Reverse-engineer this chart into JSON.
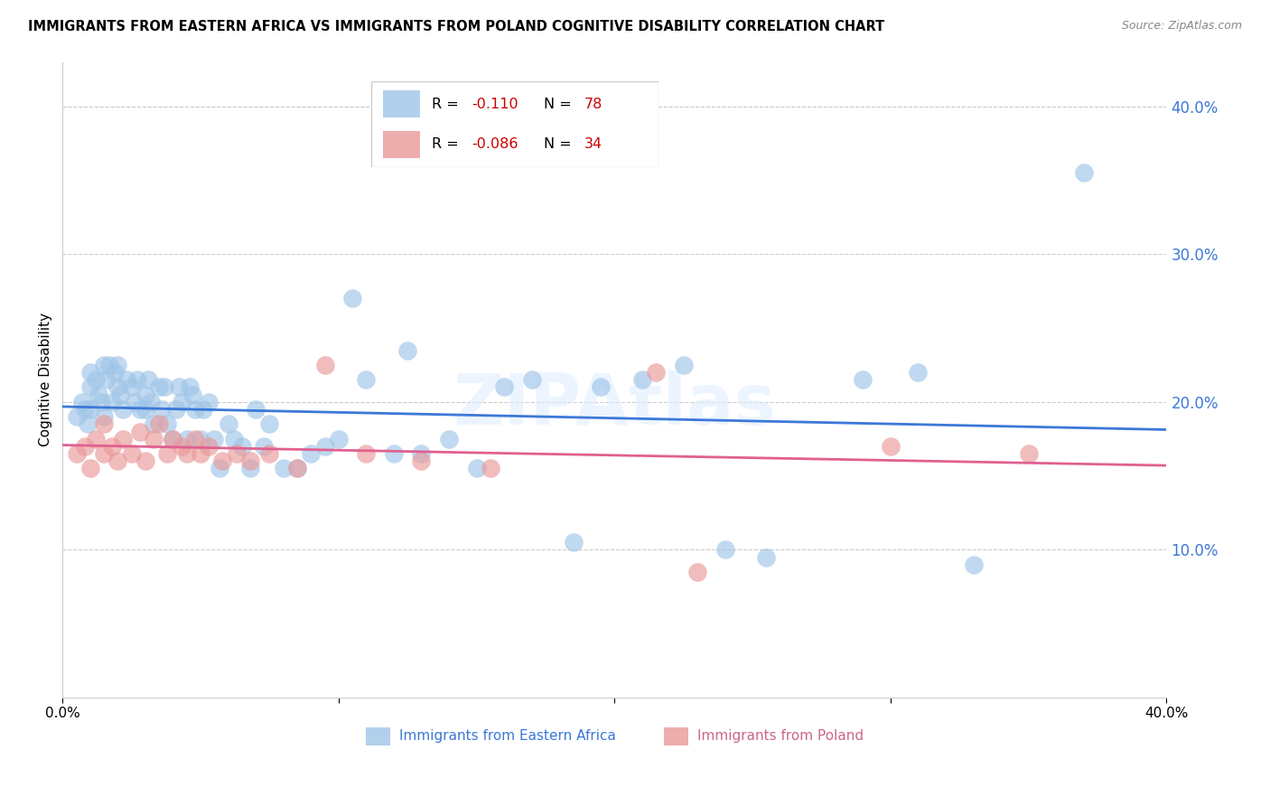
{
  "title": "IMMIGRANTS FROM EASTERN AFRICA VS IMMIGRANTS FROM POLAND COGNITIVE DISABILITY CORRELATION CHART",
  "source": "Source: ZipAtlas.com",
  "ylabel": "Cognitive Disability",
  "right_ytick_vals": [
    0.1,
    0.2,
    0.3,
    0.4
  ],
  "xlim": [
    0.0,
    0.4
  ],
  "ylim": [
    0.0,
    0.43
  ],
  "blue_color": "#9fc5e8",
  "pink_color": "#ea9999",
  "blue_line_color": "#3c78d8",
  "pink_line_color": "#e06090",
  "watermark": "ZIPAtlas",
  "legend_blue_r": "-0.110",
  "legend_blue_n": "78",
  "legend_pink_r": "-0.086",
  "legend_pink_n": "34",
  "eastern_africa_x": [
    0.005,
    0.007,
    0.008,
    0.009,
    0.01,
    0.01,
    0.01,
    0.012,
    0.013,
    0.014,
    0.015,
    0.015,
    0.016,
    0.017,
    0.018,
    0.019,
    0.02,
    0.02,
    0.021,
    0.022,
    0.023,
    0.025,
    0.026,
    0.027,
    0.028,
    0.03,
    0.03,
    0.031,
    0.032,
    0.033,
    0.035,
    0.036,
    0.037,
    0.038,
    0.04,
    0.041,
    0.042,
    0.043,
    0.045,
    0.046,
    0.047,
    0.048,
    0.05,
    0.051,
    0.053,
    0.055,
    0.057,
    0.06,
    0.062,
    0.065,
    0.068,
    0.07,
    0.073,
    0.075,
    0.08,
    0.085,
    0.09,
    0.095,
    0.1,
    0.105,
    0.11,
    0.12,
    0.125,
    0.13,
    0.14,
    0.15,
    0.16,
    0.17,
    0.185,
    0.195,
    0.21,
    0.225,
    0.24,
    0.255,
    0.29,
    0.31,
    0.33,
    0.37
  ],
  "eastern_africa_y": [
    0.19,
    0.2,
    0.195,
    0.185,
    0.21,
    0.22,
    0.195,
    0.215,
    0.205,
    0.2,
    0.19,
    0.225,
    0.215,
    0.225,
    0.2,
    0.22,
    0.21,
    0.225,
    0.205,
    0.195,
    0.215,
    0.21,
    0.2,
    0.215,
    0.195,
    0.205,
    0.195,
    0.215,
    0.2,
    0.185,
    0.21,
    0.195,
    0.21,
    0.185,
    0.175,
    0.195,
    0.21,
    0.2,
    0.175,
    0.21,
    0.205,
    0.195,
    0.175,
    0.195,
    0.2,
    0.175,
    0.155,
    0.185,
    0.175,
    0.17,
    0.155,
    0.195,
    0.17,
    0.185,
    0.155,
    0.155,
    0.165,
    0.17,
    0.175,
    0.27,
    0.215,
    0.165,
    0.235,
    0.165,
    0.175,
    0.155,
    0.21,
    0.215,
    0.105,
    0.21,
    0.215,
    0.225,
    0.1,
    0.095,
    0.215,
    0.22,
    0.09,
    0.355
  ],
  "poland_x": [
    0.005,
    0.008,
    0.01,
    0.012,
    0.015,
    0.015,
    0.018,
    0.02,
    0.022,
    0.025,
    0.028,
    0.03,
    0.033,
    0.035,
    0.038,
    0.04,
    0.043,
    0.045,
    0.048,
    0.05,
    0.053,
    0.058,
    0.063,
    0.068,
    0.075,
    0.085,
    0.095,
    0.11,
    0.13,
    0.155,
    0.215,
    0.23,
    0.3,
    0.35
  ],
  "poland_y": [
    0.165,
    0.17,
    0.155,
    0.175,
    0.165,
    0.185,
    0.17,
    0.16,
    0.175,
    0.165,
    0.18,
    0.16,
    0.175,
    0.185,
    0.165,
    0.175,
    0.17,
    0.165,
    0.175,
    0.165,
    0.17,
    0.16,
    0.165,
    0.16,
    0.165,
    0.155,
    0.225,
    0.165,
    0.16,
    0.155,
    0.22,
    0.085,
    0.17,
    0.165
  ]
}
